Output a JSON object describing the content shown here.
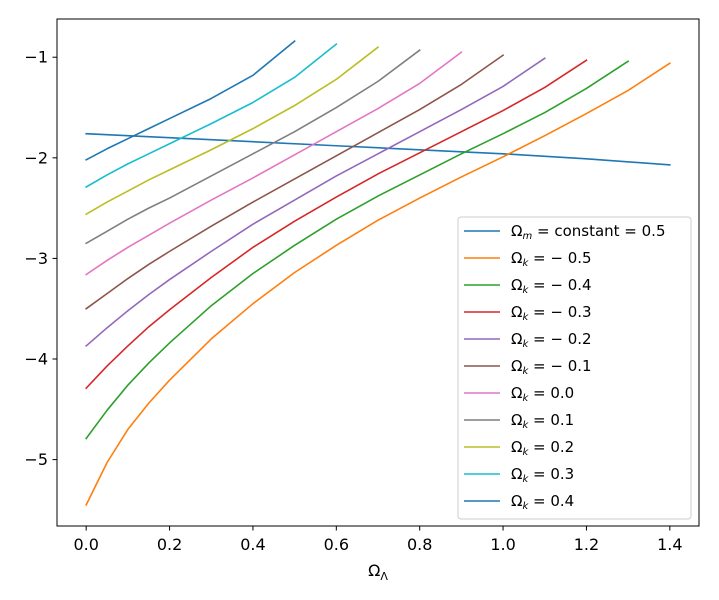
{
  "chart_data": {
    "type": "line",
    "title": "",
    "xlabel": "Ω",
    "xlabel_sub": "Λ",
    "ylabel": "",
    "xlim": [
      -0.07,
      1.47
    ],
    "ylim": [
      -5.66,
      -0.62
    ],
    "xticks": [
      0.0,
      0.2,
      0.4,
      0.6,
      0.8,
      1.0,
      1.2,
      1.4
    ],
    "xtick_labels": [
      "0.0",
      "0.2",
      "0.4",
      "0.6",
      "0.8",
      "1.0",
      "1.2",
      "1.4"
    ],
    "yticks": [
      -5,
      -4,
      -3,
      -2,
      -1
    ],
    "ytick_labels": [
      "−5",
      "−4",
      "−3",
      "−2",
      "−1"
    ],
    "grid": false,
    "legend_position": "lower-right",
    "series": [
      {
        "name": "Ωm = constant = 0.5",
        "legend_parts": [
          "Ω",
          "m",
          " = constant = 0.5"
        ],
        "color": "#1f77b4",
        "x": [
          0.0,
          0.2,
          0.4,
          0.6,
          0.8,
          1.0,
          1.2,
          1.4
        ],
        "y": [
          -1.76,
          -1.8,
          -1.84,
          -1.88,
          -1.92,
          -1.96,
          -2.01,
          -2.07
        ]
      },
      {
        "name": "Ωk = −0.5",
        "legend_parts": [
          "Ω",
          "k",
          " = − 0.5"
        ],
        "color": "#ff7f0e",
        "x": [
          0.0,
          0.05,
          0.1,
          0.15,
          0.2,
          0.3,
          0.4,
          0.5,
          0.6,
          0.7,
          0.8,
          0.9,
          1.0,
          1.1,
          1.2,
          1.3,
          1.4
        ],
        "y": [
          -5.45,
          -5.03,
          -4.7,
          -4.44,
          -4.21,
          -3.8,
          -3.45,
          -3.14,
          -2.87,
          -2.62,
          -2.4,
          -2.19,
          -1.99,
          -1.78,
          -1.56,
          -1.33,
          -1.06
        ]
      },
      {
        "name": "Ωk = −0.4",
        "legend_parts": [
          "Ω",
          "k",
          " = − 0.4"
        ],
        "color": "#2ca02c",
        "x": [
          0.0,
          0.05,
          0.1,
          0.15,
          0.2,
          0.3,
          0.4,
          0.5,
          0.6,
          0.7,
          0.8,
          0.9,
          1.0,
          1.1,
          1.2,
          1.3
        ],
        "y": [
          -4.79,
          -4.51,
          -4.26,
          -4.04,
          -3.84,
          -3.47,
          -3.15,
          -2.87,
          -2.61,
          -2.38,
          -2.17,
          -1.96,
          -1.76,
          -1.55,
          -1.31,
          -1.04
        ]
      },
      {
        "name": "Ωk = −0.3",
        "legend_parts": [
          "Ω",
          "k",
          " = − 0.3"
        ],
        "color": "#d62728",
        "x": [
          0.0,
          0.05,
          0.1,
          0.15,
          0.2,
          0.3,
          0.4,
          0.5,
          0.6,
          0.7,
          0.8,
          0.9,
          1.0,
          1.1,
          1.2
        ],
        "y": [
          -4.29,
          -4.07,
          -3.87,
          -3.68,
          -3.51,
          -3.19,
          -2.89,
          -2.63,
          -2.39,
          -2.16,
          -1.95,
          -1.74,
          -1.53,
          -1.3,
          -1.03
        ]
      },
      {
        "name": "Ωk = −0.2",
        "legend_parts": [
          "Ω",
          "k",
          " = − 0.2"
        ],
        "color": "#9467bd",
        "x": [
          0.0,
          0.05,
          0.1,
          0.15,
          0.2,
          0.3,
          0.4,
          0.5,
          0.6,
          0.7,
          0.8,
          0.9,
          1.0,
          1.1
        ],
        "y": [
          -3.87,
          -3.69,
          -3.52,
          -3.36,
          -3.21,
          -2.93,
          -2.66,
          -2.42,
          -2.18,
          -1.96,
          -1.74,
          -1.52,
          -1.29,
          -1.01
        ]
      },
      {
        "name": "Ωk = −0.1",
        "legend_parts": [
          "Ω",
          "k",
          " = − 0.1"
        ],
        "color": "#8c564b",
        "x": [
          0.0,
          0.05,
          0.1,
          0.15,
          0.2,
          0.3,
          0.4,
          0.5,
          0.6,
          0.7,
          0.8,
          0.9,
          1.0
        ],
        "y": [
          -3.5,
          -3.35,
          -3.2,
          -3.06,
          -2.93,
          -2.68,
          -2.44,
          -2.21,
          -1.98,
          -1.75,
          -1.52,
          -1.27,
          -0.98
        ]
      },
      {
        "name": "Ωk = 0.0",
        "legend_parts": [
          "Ω",
          "k",
          " = 0.0"
        ],
        "color": "#e377c2",
        "x": [
          0.0,
          0.05,
          0.1,
          0.15,
          0.2,
          0.3,
          0.4,
          0.5,
          0.6,
          0.7,
          0.8,
          0.9
        ],
        "y": [
          -3.16,
          -3.02,
          -2.89,
          -2.77,
          -2.65,
          -2.42,
          -2.2,
          -1.97,
          -1.74,
          -1.51,
          -1.26,
          -0.95
        ]
      },
      {
        "name": "Ωk = 0.1",
        "legend_parts": [
          "Ω",
          "k",
          " = 0.1"
        ],
        "color": "#7f7f7f",
        "x": [
          0.0,
          0.05,
          0.1,
          0.15,
          0.2,
          0.3,
          0.4,
          0.5,
          0.6,
          0.7,
          0.8
        ],
        "y": [
          -2.85,
          -2.73,
          -2.61,
          -2.5,
          -2.4,
          -2.18,
          -1.96,
          -1.74,
          -1.5,
          -1.24,
          -0.93
        ]
      },
      {
        "name": "Ωk = 0.2",
        "legend_parts": [
          "Ω",
          "k",
          " = 0.2"
        ],
        "color": "#bcbd22",
        "x": [
          0.0,
          0.05,
          0.1,
          0.15,
          0.2,
          0.3,
          0.4,
          0.5,
          0.6,
          0.7
        ],
        "y": [
          -2.56,
          -2.44,
          -2.33,
          -2.22,
          -2.12,
          -1.92,
          -1.71,
          -1.48,
          -1.22,
          -0.9
        ]
      },
      {
        "name": "Ωk = 0.3",
        "legend_parts": [
          "Ω",
          "k",
          " = 0.3"
        ],
        "color": "#17becf",
        "x": [
          0.0,
          0.05,
          0.1,
          0.15,
          0.2,
          0.3,
          0.4,
          0.5,
          0.6
        ],
        "y": [
          -2.29,
          -2.17,
          -2.06,
          -1.96,
          -1.86,
          -1.66,
          -1.45,
          -1.2,
          -0.87
        ]
      },
      {
        "name": "Ωk = 0.4",
        "legend_parts": [
          "Ω",
          "k",
          " = 0.4"
        ],
        "color": "#1f77b4",
        "x": [
          0.0,
          0.05,
          0.1,
          0.15,
          0.2,
          0.3,
          0.4,
          0.5
        ],
        "y": [
          -2.02,
          -1.91,
          -1.81,
          -1.71,
          -1.61,
          -1.41,
          -1.18,
          -0.84
        ]
      }
    ]
  }
}
